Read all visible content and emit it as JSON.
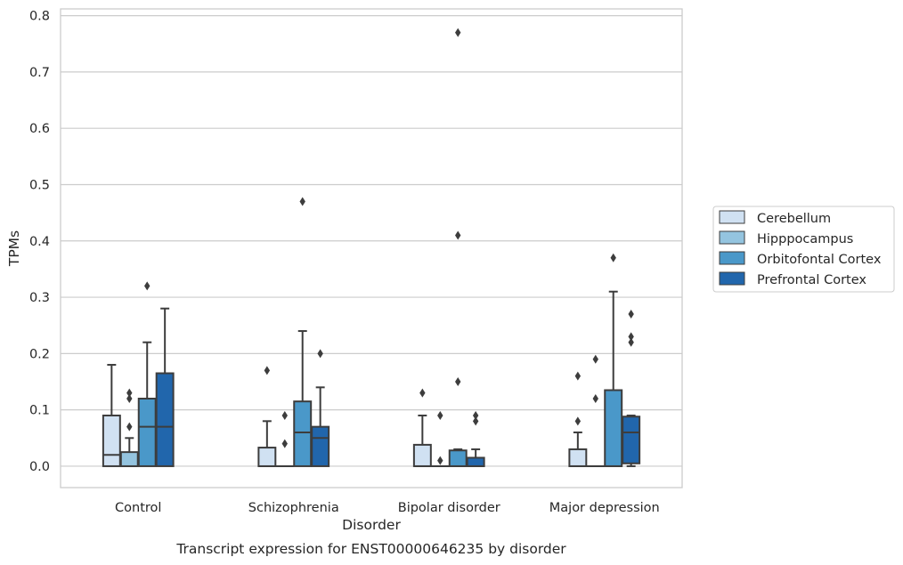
{
  "caption": "Transcript expression for ENST00000646235 by disorder",
  "chart_data": {
    "type": "box",
    "xlabel": "Disorder",
    "ylabel": "TPMs",
    "ylim": [
      -0.038,
      0.812
    ],
    "yticks": [
      0.0,
      0.1,
      0.2,
      0.3,
      0.4,
      0.5,
      0.6,
      0.7,
      0.8
    ],
    "ytick_labels": [
      "0.0",
      "0.1",
      "0.2",
      "0.3",
      "0.4",
      "0.5",
      "0.6",
      "0.7",
      "0.8"
    ],
    "grid": "horizontal",
    "legend_position": "right",
    "categories": [
      "Control",
      "Schizophrenia",
      "Bipolar disorder",
      "Major depression"
    ],
    "series": [
      {
        "name": "Cerebellum",
        "color": "#d0e1f2",
        "boxes": [
          {
            "q1": 0.0,
            "median": 0.02,
            "q3": 0.09,
            "whislo": 0.0,
            "whishi": 0.18,
            "fliers": []
          },
          {
            "q1": 0.0,
            "median": 0.0,
            "q3": 0.033,
            "whislo": 0.0,
            "whishi": 0.08,
            "fliers": [
              0.17
            ]
          },
          {
            "q1": 0.0,
            "median": 0.0,
            "q3": 0.038,
            "whislo": 0.0,
            "whishi": 0.09,
            "fliers": [
              0.13
            ]
          },
          {
            "q1": 0.0,
            "median": 0.0,
            "q3": 0.03,
            "whislo": 0.0,
            "whishi": 0.06,
            "fliers": [
              0.08,
              0.16
            ]
          }
        ]
      },
      {
        "name": "Hipppocampus",
        "color": "#94c4df",
        "boxes": [
          {
            "q1": 0.0,
            "median": 0.0,
            "q3": 0.025,
            "whislo": 0.0,
            "whishi": 0.05,
            "fliers": [
              0.07,
              0.12,
              0.13
            ]
          },
          {
            "q1": 0.0,
            "median": 0.0,
            "q3": 0.0,
            "whislo": 0.0,
            "whishi": 0.0,
            "fliers": [
              0.04,
              0.09
            ]
          },
          {
            "q1": 0.0,
            "median": 0.0,
            "q3": 0.0,
            "whislo": 0.0,
            "whishi": 0.0,
            "fliers": [
              0.01,
              0.09
            ]
          },
          {
            "q1": 0.0,
            "median": 0.0,
            "q3": 0.0,
            "whislo": 0.0,
            "whishi": 0.0,
            "fliers": [
              0.12,
              0.19
            ]
          }
        ]
      },
      {
        "name": "Orbitofontal Cortex",
        "color": "#4a98c9",
        "boxes": [
          {
            "q1": 0.0,
            "median": 0.07,
            "q3": 0.12,
            "whislo": 0.0,
            "whishi": 0.22,
            "fliers": [
              0.32
            ]
          },
          {
            "q1": 0.0,
            "median": 0.06,
            "q3": 0.115,
            "whislo": 0.0,
            "whishi": 0.24,
            "fliers": [
              0.47
            ]
          },
          {
            "q1": 0.0,
            "median": 0.0,
            "q3": 0.028,
            "whislo": 0.0,
            "whishi": 0.03,
            "fliers": [
              0.15,
              0.41,
              0.77
            ]
          },
          {
            "q1": 0.0,
            "median": 0.0,
            "q3": 0.135,
            "whislo": 0.0,
            "whishi": 0.31,
            "fliers": [
              0.37
            ]
          }
        ]
      },
      {
        "name": "Prefrontal Cortex",
        "color": "#2166ac",
        "boxes": [
          {
            "q1": 0.0,
            "median": 0.07,
            "q3": 0.165,
            "whislo": 0.0,
            "whishi": 0.28,
            "fliers": []
          },
          {
            "q1": 0.0,
            "median": 0.05,
            "q3": 0.07,
            "whislo": 0.0,
            "whishi": 0.14,
            "fliers": [
              0.2
            ]
          },
          {
            "q1": 0.0,
            "median": 0.0,
            "q3": 0.015,
            "whislo": 0.0,
            "whishi": 0.03,
            "fliers": [
              0.08,
              0.09
            ]
          },
          {
            "q1": 0.005,
            "median": 0.06,
            "q3": 0.088,
            "whislo": 0.0,
            "whishi": 0.09,
            "fliers": [
              0.22,
              0.23,
              0.27
            ]
          }
        ]
      }
    ]
  }
}
